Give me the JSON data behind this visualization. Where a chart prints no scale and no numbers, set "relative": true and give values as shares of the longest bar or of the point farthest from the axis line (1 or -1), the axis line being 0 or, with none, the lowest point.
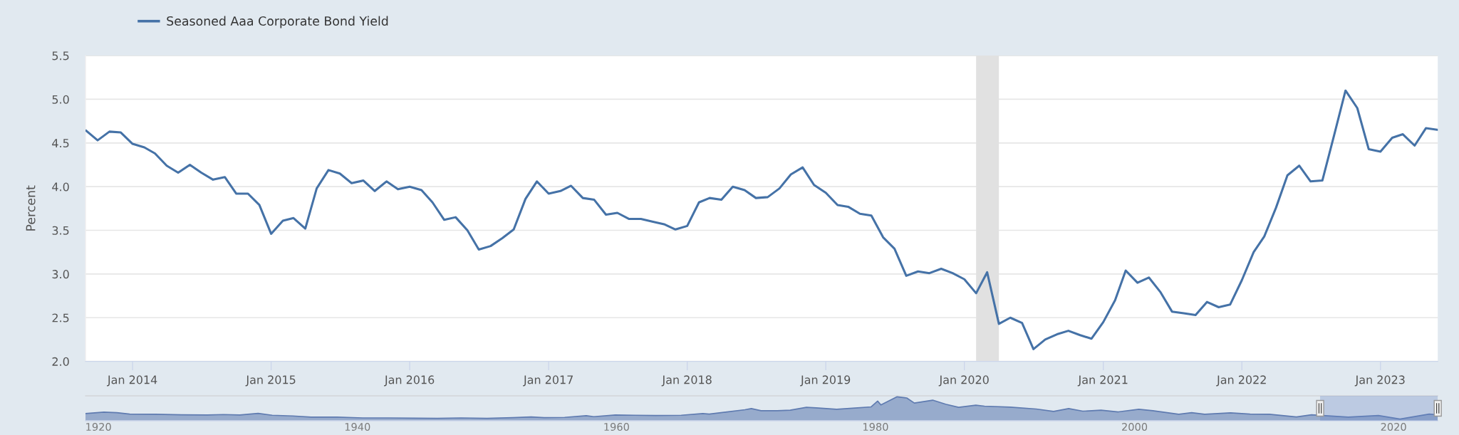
{
  "chart_data": [
    {
      "type": "line",
      "ylabel": "Percent",
      "legend": "top left",
      "grid": "y",
      "x": [
        "2013-09",
        "2013-10",
        "2013-11",
        "2013-12",
        "2014-01",
        "2014-02",
        "2014-03",
        "2014-04",
        "2014-05",
        "2014-06",
        "2014-07",
        "2014-08",
        "2014-09",
        "2014-10",
        "2014-11",
        "2014-12",
        "2015-01",
        "2015-02",
        "2015-03",
        "2015-04",
        "2015-05",
        "2015-06",
        "2015-07",
        "2015-08",
        "2015-09",
        "2015-10",
        "2015-11",
        "2015-12",
        "2016-01",
        "2016-02",
        "2016-03",
        "2016-04",
        "2016-05",
        "2016-06",
        "2016-07",
        "2016-08",
        "2016-09",
        "2016-10",
        "2016-11",
        "2016-12",
        "2017-01",
        "2017-02",
        "2017-03",
        "2017-04",
        "2017-05",
        "2017-06",
        "2017-07",
        "2017-08",
        "2017-09",
        "2017-10",
        "2017-11",
        "2017-12",
        "2018-01",
        "2018-02",
        "2018-03",
        "2018-04",
        "2018-05",
        "2018-06",
        "2018-07",
        "2018-08",
        "2018-09",
        "2018-10",
        "2018-11",
        "2018-12",
        "2019-01",
        "2019-02",
        "2019-03",
        "2019-04",
        "2019-05",
        "2019-06",
        "2019-07",
        "2019-08",
        "2019-09",
        "2019-10",
        "2019-11",
        "2019-12",
        "2020-01",
        "2020-02",
        "2020-03",
        "2020-04",
        "2020-05",
        "2020-06",
        "2020-07",
        "2020-08",
        "2020-09",
        "2020-10",
        "2020-11",
        "2020-12",
        "2021-01",
        "2021-02",
        "2021-03",
        "2021-04",
        "2021-05",
        "2021-06",
        "2021-07",
        "2021-08",
        "2021-09",
        "2021-10",
        "2021-11",
        "2021-12",
        "2022-01",
        "2022-02",
        "2022-03",
        "2022-04",
        "2022-05",
        "2022-06",
        "2022-07",
        "2022-08",
        "2022-09",
        "2022-10",
        "2022-11",
        "2022-12",
        "2023-01",
        "2023-02",
        "2023-03",
        "2023-04",
        "2023-05",
        "2023-06"
      ],
      "series": [
        {
          "name": "Seasoned Aaa Corporate Bond Yield",
          "color": "#4572a7",
          "values": [
            4.64,
            4.53,
            4.63,
            4.62,
            4.49,
            4.45,
            4.38,
            4.24,
            4.16,
            4.25,
            4.16,
            4.08,
            4.11,
            3.92,
            3.92,
            3.79,
            3.46,
            3.61,
            3.64,
            3.52,
            3.98,
            4.19,
            4.15,
            4.04,
            4.07,
            3.95,
            4.06,
            3.97,
            4.0,
            3.96,
            3.82,
            3.62,
            3.65,
            3.5,
            3.28,
            3.32,
            3.41,
            3.51,
            3.86,
            4.06,
            3.92,
            3.95,
            4.01,
            3.87,
            3.85,
            3.68,
            3.7,
            3.63,
            3.63,
            3.6,
            3.57,
            3.51,
            3.55,
            3.82,
            3.87,
            3.85,
            4.0,
            3.96,
            3.87,
            3.88,
            3.98,
            4.14,
            4.22,
            4.02,
            3.93,
            3.79,
            3.77,
            3.69,
            3.67,
            3.42,
            3.29,
            2.98,
            3.03,
            3.01,
            3.06,
            3.01,
            2.94,
            2.78,
            3.02,
            2.43,
            2.5,
            2.44,
            2.14,
            2.25,
            2.31,
            2.35,
            2.3,
            2.26,
            2.45,
            2.7,
            3.04,
            2.9,
            2.96,
            2.79,
            2.57,
            2.55,
            2.53,
            2.68,
            2.62,
            2.65,
            2.93,
            3.25,
            3.43,
            3.76,
            4.13,
            4.24,
            4.06,
            4.07,
            4.59,
            5.1,
            4.9,
            4.43,
            4.4,
            4.56,
            4.6,
            4.47,
            4.67,
            4.65
          ]
        }
      ],
      "xlim": [
        "2013-08-30",
        "2023-06-01"
      ],
      "xticks": [
        {
          "value": "2014-01-01",
          "label": "Jan 2014"
        },
        {
          "value": "2015-01-01",
          "label": "Jan 2015"
        },
        {
          "value": "2016-01-01",
          "label": "Jan 2016"
        },
        {
          "value": "2017-01-01",
          "label": "Jan 2017"
        },
        {
          "value": "2018-01-01",
          "label": "Jan 2018"
        },
        {
          "value": "2019-01-01",
          "label": "Jan 2019"
        },
        {
          "value": "2020-01-01",
          "label": "Jan 2020"
        },
        {
          "value": "2021-01-01",
          "label": "Jan 2021"
        },
        {
          "value": "2022-01-01",
          "label": "Jan 2022"
        },
        {
          "value": "2023-01-01",
          "label": "Jan 2023"
        }
      ],
      "ylim": [
        2.0,
        5.5
      ],
      "yticks": [
        {
          "value": 2.0,
          "label": "2.0"
        },
        {
          "value": 2.5,
          "label": "2.5"
        },
        {
          "value": 3.0,
          "label": "3.0"
        },
        {
          "value": 3.5,
          "label": "3.5"
        },
        {
          "value": 4.0,
          "label": "4.0"
        },
        {
          "value": 4.5,
          "label": "4.5"
        },
        {
          "value": 5.0,
          "label": "5.0"
        },
        {
          "value": 5.5,
          "label": "5.5"
        }
      ],
      "bands": [
        {
          "axis": "x",
          "from": "2020-02-01",
          "to": "2020-04-01",
          "color": "#e1e1e1"
        }
      ]
    },
    {
      "type": "area",
      "relative": true,
      "tick_labels": "x",
      "x": [
        "1919-01",
        "1920-06",
        "1921-06",
        "1922-06",
        "1924-06",
        "1926-06",
        "1928-06",
        "1929-09",
        "1930-12",
        "1932-05",
        "1933-06",
        "1935-01",
        "1936-06",
        "1938-06",
        "1940-06",
        "1942-06",
        "1944-06",
        "1946-03",
        "1948-01",
        "1950-01",
        "1952-01",
        "1953-06",
        "1954-06",
        "1956-01",
        "1957-09",
        "1958-04",
        "1959-12",
        "1961-06",
        "1963-01",
        "1965-01",
        "1966-09",
        "1967-03",
        "1968-06",
        "1969-12",
        "1970-06",
        "1971-03",
        "1972-06",
        "1973-06",
        "1974-09",
        "1975-06",
        "1977-01",
        "1978-06",
        "1979-09",
        "1980-03",
        "1980-06",
        "1981-09",
        "1982-06",
        "1983-01",
        "1984-06",
        "1985-06",
        "1986-06",
        "1987-10",
        "1988-06",
        "1990-06",
        "1992-06",
        "1993-10",
        "1994-12",
        "1996-01",
        "1997-06",
        "1998-10",
        "2000-05",
        "2001-06",
        "2003-06",
        "2004-06",
        "2005-06",
        "2007-06",
        "2008-12",
        "2010-06",
        "2012-07",
        "2013-09",
        "2016-07",
        "2018-11",
        "2020-07",
        "2022-10",
        "2023-06"
      ],
      "series": [
        {
          "color": "#5f7bb0",
          "values": [
            0.3,
            0.36,
            0.34,
            0.28,
            0.27,
            0.25,
            0.24,
            0.26,
            0.24,
            0.31,
            0.23,
            0.2,
            0.15,
            0.15,
            0.12,
            0.12,
            0.11,
            0.1,
            0.12,
            0.1,
            0.13,
            0.16,
            0.13,
            0.14,
            0.21,
            0.17,
            0.24,
            0.23,
            0.22,
            0.23,
            0.3,
            0.28,
            0.36,
            0.46,
            0.51,
            0.42,
            0.42,
            0.44,
            0.56,
            0.54,
            0.48,
            0.53,
            0.58,
            0.82,
            0.66,
            1.0,
            0.95,
            0.74,
            0.86,
            0.69,
            0.56,
            0.65,
            0.61,
            0.57,
            0.49,
            0.39,
            0.51,
            0.4,
            0.44,
            0.37,
            0.48,
            0.42,
            0.27,
            0.34,
            0.27,
            0.33,
            0.28,
            0.27,
            0.16,
            0.25,
            0.15,
            0.22,
            0.07,
            0.28,
            0.25
          ]
        }
      ],
      "xlim": [
        "1919-01",
        "2023-06"
      ],
      "xticks": [
        {
          "value": "1920-01-01",
          "label": "1920"
        },
        {
          "value": "1940-01-01",
          "label": "1940"
        },
        {
          "value": "1960-01-01",
          "label": "1960"
        },
        {
          "value": "1980-01-01",
          "label": "1980"
        },
        {
          "value": "2000-01-01",
          "label": "2000"
        },
        {
          "value": "2020-01-01",
          "label": "2020"
        }
      ],
      "bands": [
        {
          "axis": "x",
          "from": "2014-05-01",
          "to": "2023-06-01",
          "color": "#6685c2"
        }
      ]
    }
  ]
}
